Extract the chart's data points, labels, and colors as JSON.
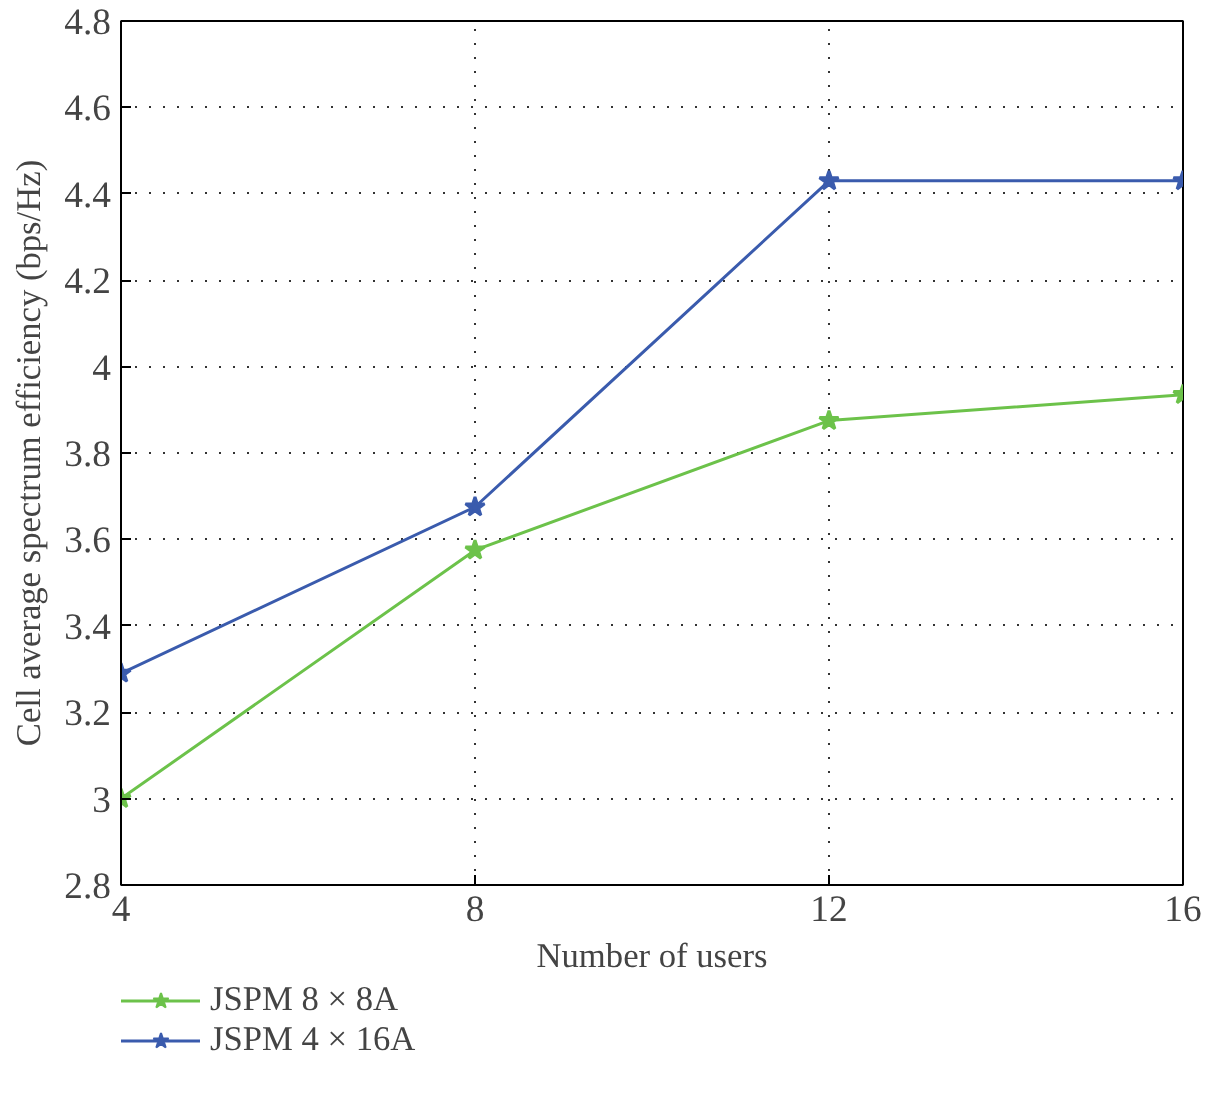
{
  "chart_data": {
    "type": "line",
    "xlabel": "Number of users",
    "ylabel": "Cell average spectrum efficiency (bps/Hz)",
    "x": [
      4,
      8,
      12,
      16
    ],
    "series": [
      {
        "name": "JSPM 8 × 8A",
        "color": "#6cc24a",
        "values": [
          3.0,
          3.575,
          3.875,
          3.935
        ]
      },
      {
        "name": "JSPM 4 × 16A",
        "color": "#3a5bad",
        "values": [
          3.29,
          3.675,
          4.43,
          4.43
        ]
      }
    ],
    "xlim": [
      4,
      16
    ],
    "xticks": [
      4,
      8,
      12,
      16
    ],
    "ylim": [
      2.8,
      4.8
    ],
    "yticks": [
      2.8,
      3,
      3.2,
      3.4,
      3.6,
      3.8,
      4,
      4.2,
      4.4,
      4.6,
      4.8
    ],
    "grid": true,
    "legend": "bottom left",
    "marker": "star",
    "line_style": "solid"
  }
}
